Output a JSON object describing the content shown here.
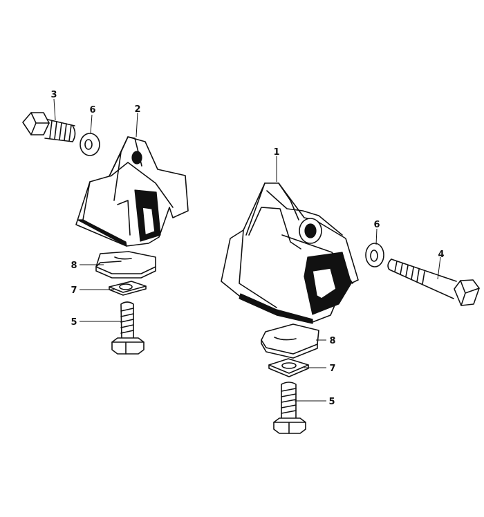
{
  "callouts": {
    "left_mount": "2",
    "right_mount": "1",
    "left_bolt_long": "3",
    "right_bolt_long": "4",
    "left_washer": "6",
    "right_washer": "6",
    "left_shim_slotted": "8",
    "right_shim_slotted": "8",
    "left_square_washer": "7",
    "right_square_washer": "7",
    "left_bolt_short": "5",
    "right_bolt_short": "5"
  }
}
